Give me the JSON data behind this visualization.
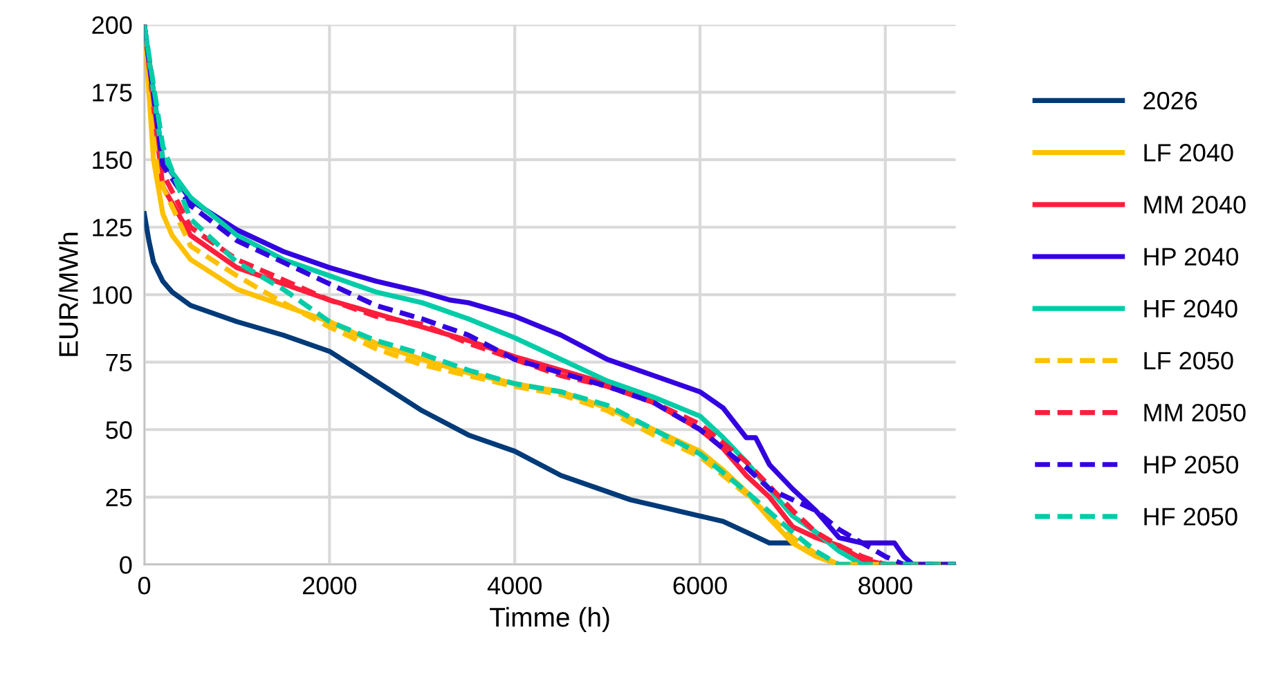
{
  "chart_data": {
    "type": "line",
    "xlabel": "Timme (h)",
    "ylabel": "EUR/MWh",
    "xlim": [
      0,
      8760
    ],
    "xticks": [
      0,
      2000,
      4000,
      6000,
      8000
    ],
    "ylim": [
      0,
      200
    ],
    "yticks": [
      0,
      25,
      50,
      75,
      100,
      125,
      150,
      175,
      200
    ],
    "grid": true,
    "legend": "right",
    "marker": "none",
    "series": [
      {
        "name": "2026",
        "color": "#003a78",
        "line_style": "solid",
        "x": [
          0,
          50,
          100,
          200,
          300,
          500,
          750,
          1000,
          1500,
          2000,
          2500,
          3000,
          3500,
          4000,
          4500,
          5000,
          5250,
          5500,
          6000,
          6250,
          6500,
          6750,
          7000,
          7250,
          7500,
          8760
        ],
        "values": [
          130,
          120,
          112,
          105,
          101,
          96,
          93,
          90,
          85,
          79,
          68,
          57,
          48,
          42,
          33,
          27,
          24,
          22,
          18,
          16,
          12,
          8,
          8,
          null,
          0,
          0
        ]
      },
      {
        "name": "LF 2040",
        "color": "#ffc000",
        "line_style": "solid",
        "x": [
          0,
          100,
          200,
          300,
          500,
          1000,
          1500,
          2000,
          2500,
          3000,
          3500,
          4000,
          4500,
          5000,
          5500,
          6000,
          6250,
          6500,
          6750,
          7000,
          7250,
          7500,
          8760
        ],
        "values": [
          200,
          150,
          130,
          122,
          113,
          102,
          96,
          90,
          82,
          76,
          71,
          67,
          64,
          58,
          50,
          42,
          35,
          27,
          17,
          8,
          3,
          0,
          0
        ]
      },
      {
        "name": "MM 2040",
        "color": "#ff1f3d",
        "line_style": "solid",
        "x": [
          0,
          200,
          500,
          1000,
          1500,
          2000,
          2500,
          3000,
          3500,
          4000,
          4500,
          5000,
          5500,
          6000,
          6250,
          6500,
          6750,
          7000,
          7250,
          7500,
          7750,
          8000,
          8760
        ],
        "values": [
          200,
          140,
          122,
          110,
          104,
          98,
          93,
          88,
          83,
          77,
          72,
          67,
          60,
          50,
          43,
          33,
          25,
          14,
          10,
          7,
          2,
          0,
          0
        ]
      },
      {
        "name": "HP 2040",
        "color": "#3300e0",
        "line_style": "solid",
        "x": [
          0,
          200,
          500,
          1000,
          1500,
          2000,
          2500,
          3000,
          3300,
          3500,
          4000,
          4500,
          5000,
          5500,
          6000,
          6250,
          6500,
          6600,
          6750,
          7000,
          7250,
          7500,
          7750,
          8000,
          8100,
          8200,
          8300,
          8760
        ],
        "values": [
          200,
          150,
          135,
          124,
          116,
          110,
          105,
          101,
          98,
          97,
          92,
          85,
          76,
          70,
          64,
          58,
          47,
          47,
          37,
          28,
          20,
          10,
          8,
          8,
          8,
          3,
          0,
          0
        ]
      },
      {
        "name": "HF 2040",
        "color": "#00cca8",
        "line_style": "solid",
        "x": [
          0,
          200,
          500,
          1000,
          1500,
          2000,
          2500,
          3000,
          3500,
          4000,
          4500,
          5000,
          5500,
          6000,
          6250,
          6500,
          6750,
          7000,
          7250,
          7500,
          7750,
          8760
        ],
        "values": [
          200,
          150,
          136,
          122,
          113,
          107,
          101,
          97,
          91,
          84,
          76,
          68,
          62,
          55,
          47,
          38,
          28,
          18,
          12,
          5,
          0,
          0
        ]
      },
      {
        "name": "LF 2050",
        "color": "#ffc000",
        "line_style": "dashed",
        "x": [
          0,
          100,
          200,
          500,
          1000,
          1500,
          2000,
          2500,
          3000,
          3500,
          4000,
          4500,
          5000,
          5500,
          6000,
          6500,
          7000,
          7250,
          7500,
          8760
        ],
        "values": [
          200,
          160,
          140,
          118,
          107,
          97,
          88,
          80,
          74,
          70,
          66,
          63,
          57,
          48,
          40,
          26,
          10,
          4,
          0,
          0
        ]
      },
      {
        "name": "MM 2050",
        "color": "#ff1f3d",
        "line_style": "dashed",
        "x": [
          0,
          200,
          500,
          1000,
          2000,
          2500,
          3000,
          3500,
          4000,
          4500,
          5000,
          5500,
          6000,
          6500,
          7000,
          7250,
          7500,
          7750,
          8000,
          8760
        ],
        "values": [
          200,
          145,
          125,
          113,
          98,
          92,
          89,
          82,
          76,
          70,
          66,
          60,
          52,
          38,
          20,
          12,
          7,
          3,
          0,
          0
        ]
      },
      {
        "name": "HP 2050",
        "color": "#3300e0",
        "line_style": "dashed",
        "x": [
          0,
          200,
          500,
          1000,
          1500,
          2000,
          2500,
          3000,
          3500,
          4000,
          4500,
          5000,
          5500,
          6000,
          6500,
          6750,
          7000,
          7250,
          7500,
          7750,
          8000,
          8200,
          8760
        ],
        "values": [
          200,
          148,
          133,
          120,
          112,
          104,
          96,
          91,
          85,
          76,
          71,
          66,
          60,
          50,
          36,
          28,
          24,
          20,
          13,
          8,
          3,
          0,
          0
        ]
      },
      {
        "name": "HF 2050",
        "color": "#00cca8",
        "line_style": "dashed",
        "x": [
          0,
          200,
          500,
          1000,
          1500,
          2000,
          2500,
          3000,
          3500,
          4000,
          4500,
          5000,
          5500,
          6000,
          6500,
          7000,
          7250,
          7500,
          8760
        ],
        "values": [
          200,
          155,
          128,
          112,
          102,
          90,
          83,
          78,
          72,
          67,
          64,
          59,
          50,
          41,
          27,
          12,
          5,
          0,
          0
        ]
      }
    ]
  }
}
